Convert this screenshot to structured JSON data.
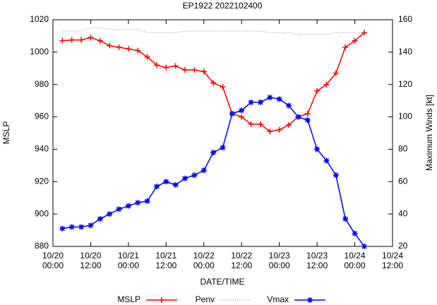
{
  "chart_data": {
    "type": "line",
    "title": "EP1922 2022102400",
    "x_label": "DATE/TIME",
    "y_label": "MSLP",
    "y2_label": "Maximum Winds [kt]",
    "x": [
      "10/20 03:00",
      "10/20 06:00",
      "10/20 09:00",
      "10/20 12:00",
      "10/20 15:00",
      "10/20 18:00",
      "10/20 21:00",
      "10/21 00:00",
      "10/21 03:00",
      "10/21 06:00",
      "10/21 09:00",
      "10/21 12:00",
      "10/21 15:00",
      "10/21 18:00",
      "10/21 21:00",
      "10/22 00:00",
      "10/22 03:00",
      "10/22 06:00",
      "10/22 09:00",
      "10/22 12:00",
      "10/22 15:00",
      "10/22 18:00",
      "10/22 21:00",
      "10/23 00:00",
      "10/23 03:00",
      "10/23 06:00",
      "10/23 09:00",
      "10/23 12:00",
      "10/23 15:00",
      "10/23 18:00",
      "10/23 21:00",
      "10/24 00:00",
      "10/24 03:00"
    ],
    "series": [
      {
        "name": "MSLP",
        "color": "#ff0000",
        "marker": "plus",
        "values": [
          1007,
          1007.5,
          1007.5,
          1009,
          1007,
          1004,
          1003,
          1002,
          1001,
          997,
          992,
          990.5,
          991.5,
          989,
          989,
          988,
          981,
          978.5,
          962,
          960,
          955.5,
          955.5,
          951,
          952,
          955,
          960,
          962,
          976,
          980,
          987,
          1003,
          1007,
          1012
        ]
      },
      {
        "name": "Penv",
        "color": "#888888",
        "dashed": true,
        "values": [
          1013,
          1013,
          1013,
          1015,
          1015,
          1014,
          1014,
          1014,
          1014,
          1012,
          1012,
          1012,
          1012,
          1013,
          1013,
          1013,
          1013,
          1013,
          1013,
          1013,
          1013,
          1013,
          1012,
          1012,
          1012,
          1011,
          1011,
          1011,
          1011,
          1012,
          1012,
          1012,
          1012
        ]
      },
      {
        "name": "Vmax",
        "color": "#0000ff",
        "marker": "star",
        "axis": "y2",
        "values": [
          31,
          32,
          32,
          33,
          37,
          40,
          43,
          45,
          47,
          48,
          57,
          60,
          58,
          62,
          64,
          67,
          78,
          81,
          102,
          104,
          109,
          109,
          112,
          111,
          107,
          100,
          98,
          80,
          73,
          64,
          37,
          28,
          20
        ]
      }
    ],
    "xlim": [
      "10/20 00:00",
      "10/24 12:00"
    ],
    "xticks": [
      "10/20 00:00",
      "10/20 12:00",
      "10/21 00:00",
      "10/21 12:00",
      "10/22 00:00",
      "10/22 12:00",
      "10/23 00:00",
      "10/23 12:00",
      "10/24 00:00",
      "10/24 12:00"
    ],
    "ylim": [
      880,
      1020
    ],
    "yticks": [
      880,
      900,
      920,
      940,
      960,
      980,
      1000,
      1020
    ],
    "y2lim": [
      20,
      160
    ],
    "y2ticks": [
      20,
      40,
      60,
      80,
      100,
      120,
      140,
      160
    ],
    "legend": "bottom"
  }
}
